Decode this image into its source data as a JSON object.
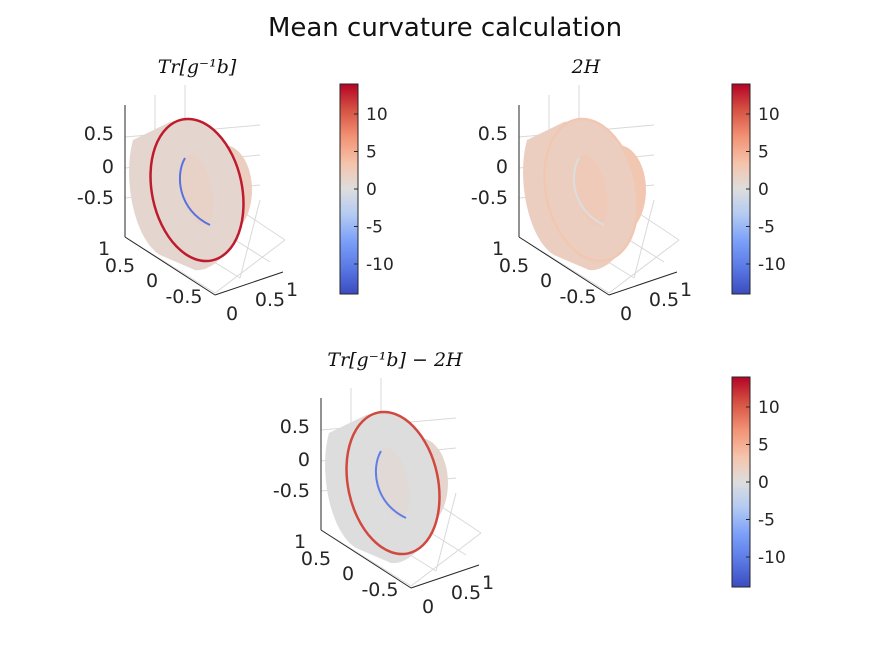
{
  "figure": {
    "title": "Mean curvature calculation"
  },
  "chart_data": [
    {
      "type": "surface3d",
      "title": "Tr[g⁻¹b]",
      "description_values": {
        "outer_ring": 13,
        "inner_ring": -11,
        "body": 1
      },
      "z_ticks": [
        "0.5",
        "0",
        "-0.5"
      ],
      "y_ticks": [
        "1",
        "0.5",
        "0",
        "-0.5"
      ],
      "x_ticks": [
        "0",
        "0.5",
        "1"
      ],
      "colorbar": {
        "ticks": [
          "10",
          "5",
          "0",
          "-5",
          "-10"
        ],
        "range": [
          -14,
          14
        ],
        "colormap": "coolwarm"
      }
    },
    {
      "type": "surface3d",
      "title": "2H",
      "description_values": {
        "outer_ring": 3,
        "inner_ring": 0,
        "body": 2
      },
      "z_ticks": [
        "0.5",
        "0",
        "-0.5"
      ],
      "y_ticks": [
        "1",
        "0.5",
        "0",
        "-0.5"
      ],
      "x_ticks": [
        "0",
        "0.5",
        "1"
      ],
      "colorbar": {
        "ticks": [
          "10",
          "5",
          "0",
          "-5",
          "-10"
        ],
        "range": [
          -14,
          14
        ],
        "colormap": "coolwarm"
      }
    },
    {
      "type": "surface3d",
      "title": "Tr[g⁻¹b] − 2H",
      "description_values": {
        "outer_ring": 11,
        "inner_ring": -10,
        "body": 0
      },
      "z_ticks": [
        "0.5",
        "0",
        "-0.5"
      ],
      "y_ticks": [
        "1",
        "0.5",
        "0",
        "-0.5"
      ],
      "x_ticks": [
        "0",
        "0.5",
        "1"
      ],
      "colorbar": {
        "ticks": [
          "10",
          "5",
          "0",
          "-5",
          "-10"
        ],
        "range": [
          -14,
          14
        ],
        "colormap": "coolwarm"
      }
    }
  ],
  "colors": {
    "cool_end": "#3b4cc0",
    "neutral": "#dddddd",
    "warm_end": "#b40426"
  }
}
